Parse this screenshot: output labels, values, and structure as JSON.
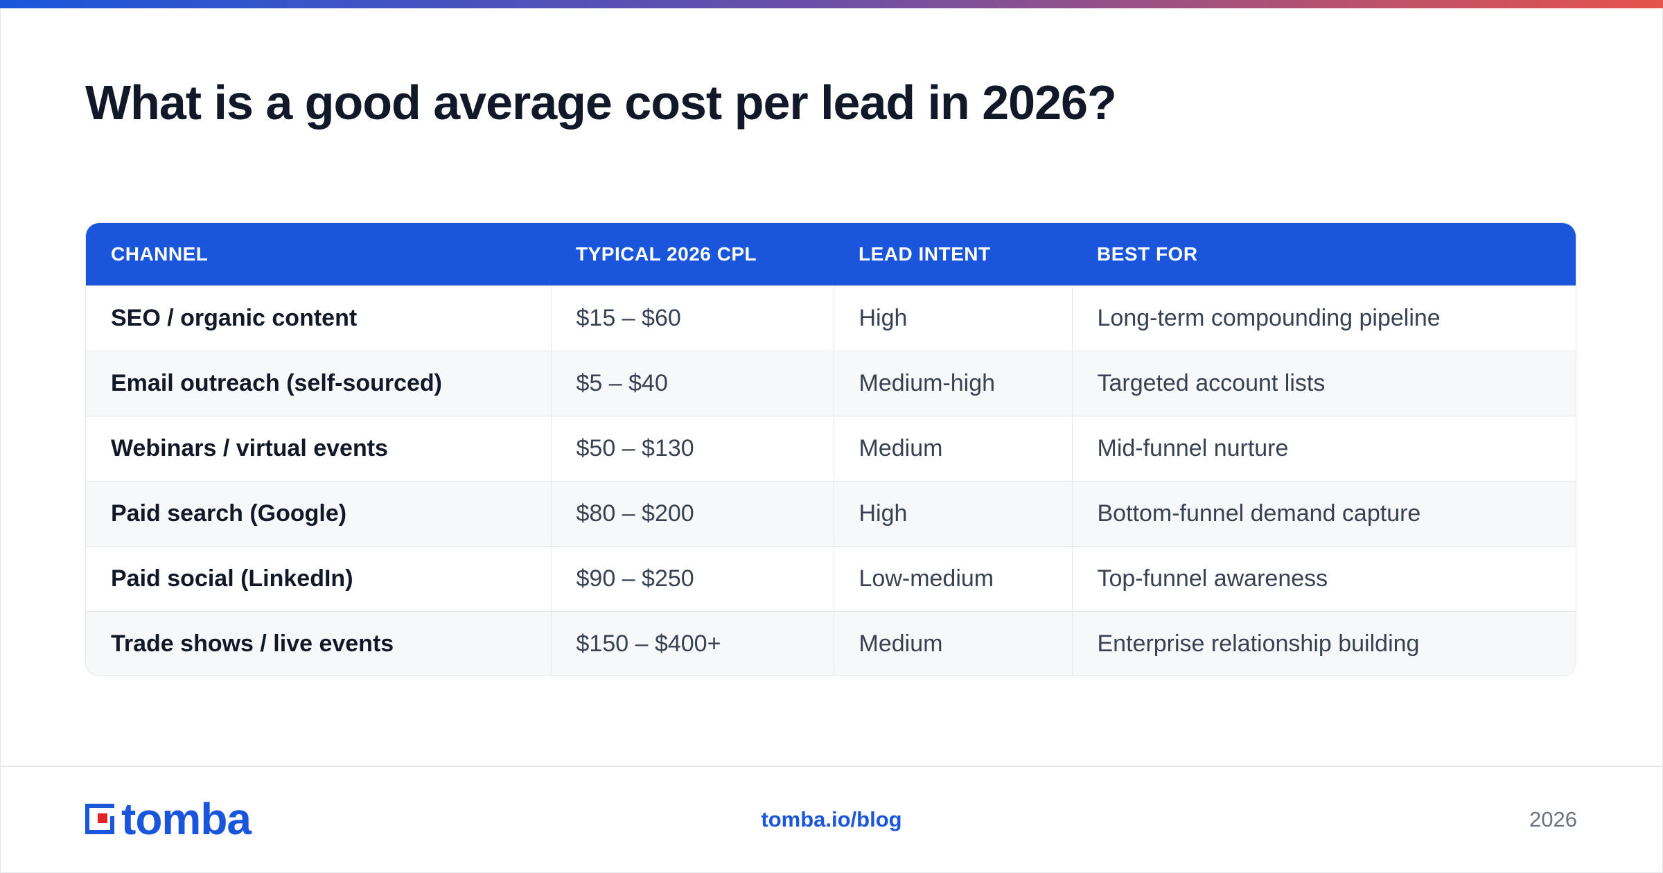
{
  "title": "What is a good average cost per lead in 2026?",
  "colors": {
    "accent": "#1a56db",
    "title": "#111827",
    "gradient_end": "#e5534b"
  },
  "table": {
    "headers": [
      "CHANNEL",
      "TYPICAL 2026 CPL",
      "LEAD INTENT",
      "BEST FOR"
    ],
    "rows": [
      [
        "SEO / organic content",
        "$15 – $60",
        "High",
        "Long-term compounding pipeline"
      ],
      [
        "Email outreach (self-sourced)",
        "$5 – $40",
        "Medium-high",
        "Targeted account lists"
      ],
      [
        "Webinars / virtual events",
        "$50 – $130",
        "Medium",
        "Mid-funnel nurture"
      ],
      [
        "Paid search (Google)",
        "$80 – $200",
        "High",
        "Bottom-funnel demand capture"
      ],
      [
        "Paid social (LinkedIn)",
        "$90 – $250",
        "Low-medium",
        "Top-funnel awareness"
      ],
      [
        "Trade shows / live events",
        "$150 – $400+",
        "Medium",
        "Enterprise relationship building"
      ]
    ]
  },
  "footer": {
    "logo_text": "tomba",
    "logo_icon": "tomba-logo-icon",
    "link": "tomba.io/blog",
    "year": "2026"
  }
}
